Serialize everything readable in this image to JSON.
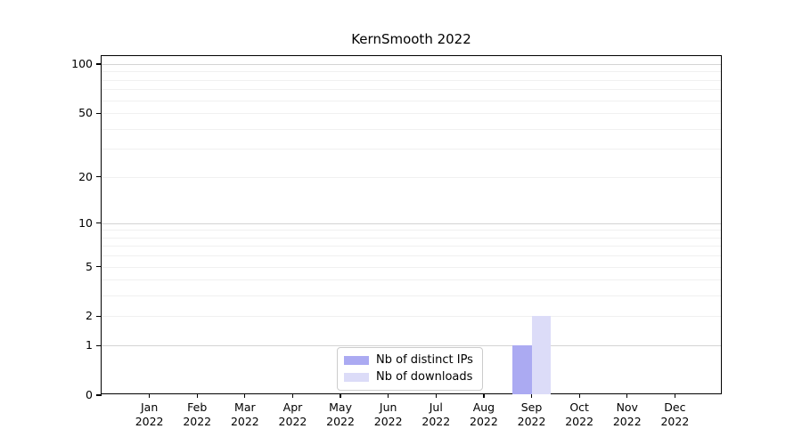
{
  "chart_data": {
    "type": "bar",
    "title": "KernSmooth 2022",
    "categories": [
      {
        "month": "Jan",
        "year": "2022"
      },
      {
        "month": "Feb",
        "year": "2022"
      },
      {
        "month": "Mar",
        "year": "2022"
      },
      {
        "month": "Apr",
        "year": "2022"
      },
      {
        "month": "May",
        "year": "2022"
      },
      {
        "month": "Jun",
        "year": "2022"
      },
      {
        "month": "Jul",
        "year": "2022"
      },
      {
        "month": "Aug",
        "year": "2022"
      },
      {
        "month": "Sep",
        "year": "2022"
      },
      {
        "month": "Oct",
        "year": "2022"
      },
      {
        "month": "Nov",
        "year": "2022"
      },
      {
        "month": "Dec",
        "year": "2022"
      }
    ],
    "series": [
      {
        "name": "Nb of distinct IPs",
        "color": "#abaaf2",
        "values": [
          0,
          0,
          0,
          0,
          0,
          0,
          0,
          0,
          1,
          0,
          0,
          0
        ]
      },
      {
        "name": "Nb of downloads",
        "color": "#dcdcf8",
        "values": [
          0,
          0,
          0,
          0,
          0,
          0,
          0,
          0,
          2,
          0,
          0,
          0
        ]
      }
    ],
    "xlabel": "",
    "ylabel": "",
    "yscale": "log1p",
    "ylim": [
      0,
      112
    ],
    "yticks": [
      0,
      1,
      2,
      5,
      10,
      20,
      50,
      100
    ],
    "grid": {
      "major_ticks": [
        1,
        10,
        100
      ],
      "minor_ticks": [
        2,
        3,
        4,
        5,
        6,
        7,
        8,
        9,
        20,
        30,
        40,
        50,
        60,
        70,
        80,
        90
      ],
      "major_color": "#d4d4d4",
      "minor_color": "#f0f0f0"
    },
    "legend": {
      "position": "bottom-center"
    },
    "frame_color": "#000000",
    "background_color": "#ffffff"
  }
}
